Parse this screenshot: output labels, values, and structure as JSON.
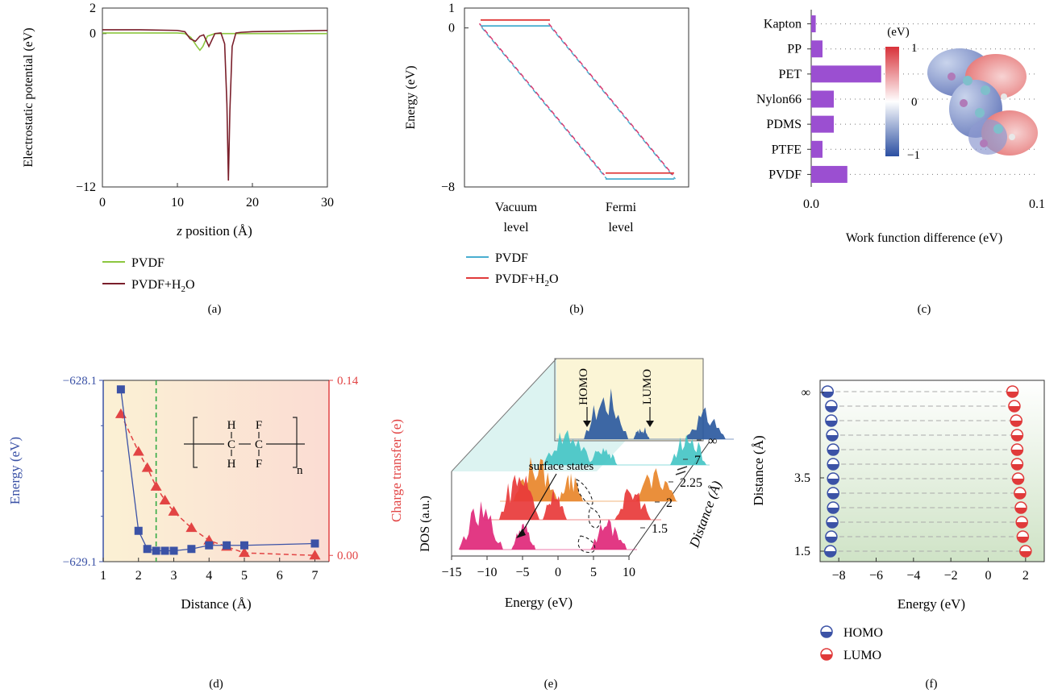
{
  "panels": [
    {
      "id": "a",
      "label": "(a)",
      "type": "line",
      "ylabel": "Electrostatic potential (eV)",
      "xlabel_italic": "z",
      "xlabel_rest": " position (Å)",
      "xticks": [
        0,
        10,
        20,
        30
      ],
      "yticks": [
        2,
        0,
        -12
      ],
      "xlim": [
        0,
        30
      ],
      "ylim": [
        -12,
        2
      ],
      "legend": [
        {
          "name": "PVDF",
          "color": "#8cc63f"
        },
        {
          "name_main": "PVDF+H",
          "name_sub": "2",
          "name_tail": "O",
          "color": "#7a1f2b"
        }
      ],
      "series": [
        {
          "name": "PVDF",
          "color": "#8cc63f",
          "x": [
            0,
            10,
            11,
            11.8,
            12.6,
            13.0,
            13.4,
            14.0,
            15,
            20,
            25,
            30
          ],
          "y": [
            0.05,
            0.05,
            0.0,
            -0.3,
            -1.0,
            -1.3,
            -1.0,
            -0.2,
            0.0,
            0.0,
            0.0,
            0.0
          ]
        },
        {
          "name": "PVDF+H2O",
          "color": "#7a1f2b",
          "x": [
            0,
            5,
            10,
            11,
            11.7,
            12.4,
            13.0,
            13.5,
            14.2,
            15,
            15.8,
            16.3,
            16.6,
            16.8,
            17.0,
            17.3,
            17.8,
            18.5,
            20,
            25,
            30
          ],
          "y": [
            0.3,
            0.3,
            0.25,
            0.15,
            -0.4,
            -0.6,
            -0.2,
            -0.1,
            -1.0,
            0.0,
            0.05,
            -0.8,
            -5.5,
            -11.5,
            -6.0,
            -1.0,
            0.05,
            0.1,
            0.15,
            0.2,
            0.25
          ]
        }
      ]
    },
    {
      "id": "b",
      "label": "(b)",
      "type": "line",
      "ylabel": "Energy (eV)",
      "yticks": [
        1,
        0,
        -8
      ],
      "ylim": [
        -8,
        1
      ],
      "categories": [
        {
          "line1": "Vacuum",
          "line2": "level"
        },
        {
          "line1": "Fermi",
          "line2": "level"
        }
      ],
      "legend": [
        {
          "name": "PVDF",
          "color": "#4aaed0"
        },
        {
          "name_main": "PVDF+H",
          "name_sub": "2",
          "name_tail": "O",
          "color": "#e03a3a"
        }
      ],
      "series": [
        {
          "name": "PVDF",
          "color": "#4aaed0",
          "vacuum": 0.1,
          "fermi": -7.6
        },
        {
          "name": "PVDF+H2O",
          "color": "#e03a3a",
          "vacuum": 0.4,
          "fermi": -7.3
        },
        {
          "name": "PVDF+H2O (dashed)",
          "color": "#d8386f",
          "vacuum": 0.3,
          "fermi": -7.4
        }
      ]
    },
    {
      "id": "c",
      "label": "(c)",
      "type": "bar",
      "xlabel": "Work function difference (eV)",
      "xticks": [
        "0.0",
        "0.1"
      ],
      "xlim": [
        0,
        0.1
      ],
      "bar_color": "#9b4fd1",
      "categories": [
        "Kapton",
        "PP",
        "PET",
        "Nylon66",
        "PDMS",
        "PTFE",
        "PVDF"
      ],
      "values": [
        0.002,
        0.005,
        0.031,
        0.01,
        0.01,
        0.005,
        0.016
      ],
      "colorbar": {
        "unit": "(eV)",
        "ticks": [
          "1",
          "0",
          "−1"
        ]
      }
    },
    {
      "id": "d",
      "label": "(d)",
      "type": "line",
      "xlabel": "Distance (Å)",
      "ylabel_left": "Energy (eV)",
      "ylabel_right": "Charge transfer (e)",
      "xticks": [
        1,
        2,
        3,
        4,
        5,
        6,
        7
      ],
      "xlim": [
        1,
        7.4
      ],
      "yticks_left": [
        "−628.1",
        "−629.1"
      ],
      "ylim_left": [
        -629.1,
        -628.1
      ],
      "yticks_right": [
        "0.14",
        "0.00"
      ],
      "ylim_right": [
        -0.005,
        0.14
      ],
      "dashed_line_x": 2.5,
      "structure": {
        "h_top": "H",
        "h_bottom": "H",
        "f_top": "F",
        "f_bottom": "F",
        "c1": "C",
        "c2": "C",
        "n": "n"
      },
      "series": [
        {
          "name": "Energy",
          "axis": "left",
          "color": "#3b52a6",
          "marker": "square",
          "x": [
            1.5,
            2.0,
            2.25,
            2.5,
            2.75,
            3.0,
            3.5,
            4.0,
            4.5,
            5.0,
            7.0
          ],
          "y": [
            -628.15,
            -628.93,
            -629.03,
            -629.04,
            -629.04,
            -629.04,
            -629.03,
            -629.01,
            -629.01,
            -629.01,
            -629.0
          ]
        },
        {
          "name": "Charge transfer",
          "axis": "right",
          "color": "#e24444",
          "marker": "triangle",
          "x": [
            1.5,
            2.0,
            2.25,
            2.5,
            2.75,
            3.0,
            3.5,
            4.0,
            4.5,
            5.0,
            7.0
          ],
          "y": [
            0.113,
            0.083,
            0.07,
            0.055,
            0.044,
            0.035,
            0.022,
            0.012,
            0.007,
            0.002,
            0.0
          ]
        }
      ]
    },
    {
      "id": "e",
      "label": "(e)",
      "type": "area",
      "ylabel": "DOS (a.u.)",
      "xlabel": "Energy (eV)",
      "zlabel": "Distance (Å)",
      "xticks": [
        -15,
        -10,
        -5,
        0,
        5,
        10
      ],
      "distance_ticks": [
        "∞",
        "7",
        "2.25",
        "2",
        "1.5"
      ],
      "annotations": [
        "HOMO",
        "LUMO",
        "surface states"
      ],
      "series": [
        {
          "name": "∞ (HOMO/LUMO)",
          "color": "#2c5aa0"
        },
        {
          "name": "7",
          "color": "#45c6c6"
        },
        {
          "name": "2.25",
          "color": "#e8862a"
        },
        {
          "name": "2",
          "color": "#e83a3a"
        },
        {
          "name": "1.5",
          "color": "#e0287a"
        }
      ]
    },
    {
      "id": "f",
      "label": "(f)",
      "type": "scatter",
      "xlabel": "Energy (eV)",
      "ylabel": "Distance (Å)",
      "xticks": [
        -8,
        -6,
        -4,
        -2,
        0,
        2
      ],
      "xlim": [
        -9,
        3
      ],
      "yticks": [
        "∞",
        "3.5",
        "1.5"
      ],
      "legend": [
        {
          "name": "HOMO",
          "color": "#3b52a6"
        },
        {
          "name": "LUMO",
          "color": "#e03a3a"
        }
      ],
      "series": [
        {
          "name": "HOMO",
          "color": "#3b52a6",
          "x": [
            -8.6,
            -8.4,
            -8.4,
            -8.35,
            -8.3,
            -8.3,
            -8.3,
            -8.3,
            -8.3,
            -8.35,
            -8.4,
            -8.45
          ],
          "levels": 12
        },
        {
          "name": "LUMO",
          "color": "#e03a3a",
          "x": [
            1.3,
            1.4,
            1.5,
            1.55,
            1.55,
            1.55,
            1.6,
            1.7,
            1.75,
            1.8,
            1.85,
            2.0
          ],
          "levels": 12
        }
      ]
    }
  ]
}
